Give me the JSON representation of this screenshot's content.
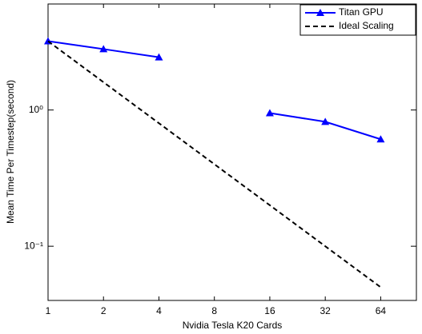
{
  "chart_data": {
    "type": "line",
    "x_label": "Nvidia Tesla K20 Cards",
    "y_label": "Mean Time Per Timestep(second)",
    "x": [
      1,
      2,
      4,
      8,
      16,
      32,
      64
    ],
    "series": [
      {
        "name": "Titan GPU",
        "color": "#0000ff",
        "style": "solid",
        "marker": "triangle",
        "values": [
          3.2,
          2.8,
          2.44,
          null,
          0.95,
          0.82,
          0.61
        ]
      },
      {
        "name": "Ideal Scaling",
        "color": "#000000",
        "style": "dashed",
        "values": [
          3.2,
          1.6,
          0.8,
          0.4,
          0.2,
          0.1,
          0.05
        ]
      }
    ],
    "xscale": "log",
    "yscale": "log",
    "xlim": [
      1,
      100
    ],
    "ylim": [
      0.04,
      6
    ],
    "xticks": [
      1,
      2,
      4,
      8,
      16,
      32,
      64
    ],
    "yticks": [
      {
        "value": 1,
        "label": "10⁰"
      },
      {
        "value": 0.1,
        "label": "10⁻¹"
      }
    ],
    "legend": "northeast",
    "grid": false
  }
}
